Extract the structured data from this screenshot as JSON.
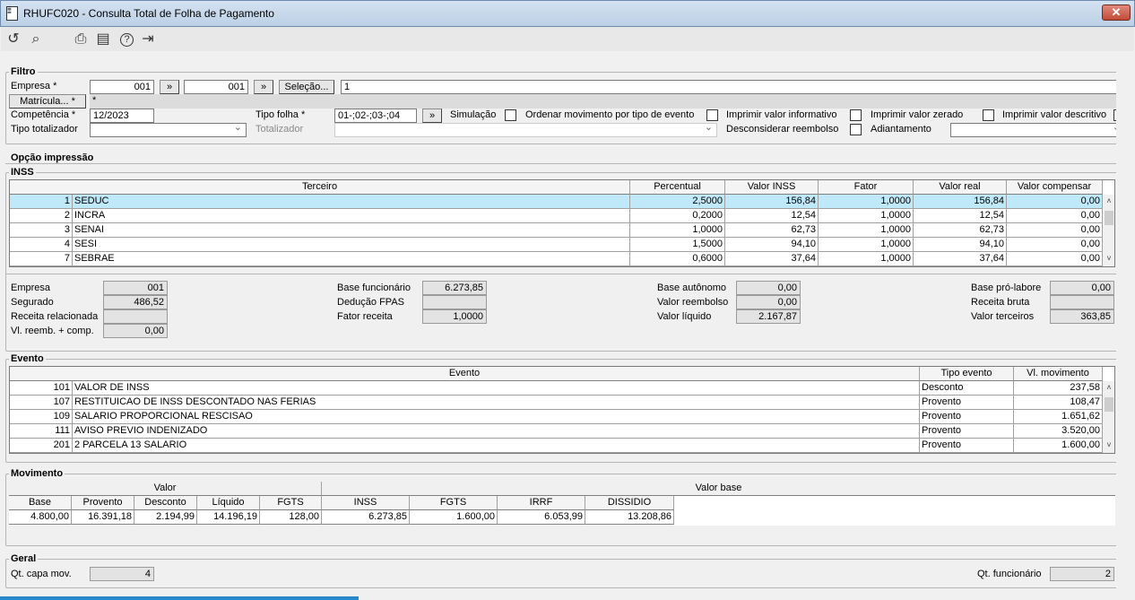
{
  "window": {
    "title": "RHUFC020 - Consulta Total de Folha de Pagamento",
    "close_icon": "close-icon"
  },
  "toolbar": [
    {
      "name": "refresh-icon",
      "glyph": "↺"
    },
    {
      "name": "search-icon",
      "glyph": "⌕"
    },
    {
      "name": "print-icon",
      "glyph": "⎙"
    },
    {
      "name": "calendar-icon",
      "glyph": "▤"
    },
    {
      "name": "help-icon",
      "glyph": "?"
    },
    {
      "name": "exit-icon",
      "glyph": "⇥"
    }
  ],
  "filtro": {
    "legend": "Filtro",
    "empresa_label": "Empresa *",
    "empresa_from": "001",
    "empresa_to": "001",
    "arrow": "»",
    "selecao_label": "Seleção...",
    "selecao_value": "1",
    "matricula_label": "Matrícula... *",
    "matricula_value": "*",
    "competencia_label": "Competência *",
    "competencia_value": "12/2023",
    "tipo_folha_label": "Tipo folha *",
    "tipo_folha_value": "01-;02-;03-;04",
    "simulacao_label": "Simulação",
    "ordenar_label": "Ordenar movimento por tipo de evento",
    "informativo_label": "Imprimir valor informativo",
    "zerado_label": "Imprimir valor zerado",
    "descritivo_label": "Imprimir valor descritivo",
    "tipo_totalizador_label": "Tipo totalizador",
    "totalizador_label": "Totalizador",
    "desconsiderar_label": "Desconsiderar reembolso",
    "adiantamento_label": "Adiantamento"
  },
  "opcao": {
    "legend": "Opção impressão"
  },
  "inss": {
    "legend": "INSS",
    "headers": [
      "Terceiro",
      "Percentual",
      "Valor INSS",
      "Fator",
      "Valor real",
      "Valor compensar"
    ],
    "rows": [
      [
        "1",
        "SEDUC",
        "2,5000",
        "156,84",
        "1,0000",
        "156,84",
        "0,00"
      ],
      [
        "2",
        "INCRA",
        "0,2000",
        "12,54",
        "1,0000",
        "12,54",
        "0,00"
      ],
      [
        "3",
        "SENAI",
        "1,0000",
        "62,73",
        "1,0000",
        "62,73",
        "0,00"
      ],
      [
        "4",
        "SESI",
        "1,5000",
        "94,10",
        "1,0000",
        "94,10",
        "0,00"
      ],
      [
        "7",
        "SEBRAE",
        "0,6000",
        "37,64",
        "1,0000",
        "37,64",
        "0,00"
      ]
    ],
    "selected_row": 0,
    "selected_color": "#bfe8f8",
    "summary": [
      {
        "label": "Empresa",
        "value": "001"
      },
      {
        "label": "Segurado",
        "value": "486,52"
      },
      {
        "label": "Receita relacionada",
        "value": ""
      },
      {
        "label": "Vl. reemb. + comp.",
        "value": "0,00"
      },
      {
        "label": "Base funcionário",
        "value": "6.273,85"
      },
      {
        "label": "Dedução FPAS",
        "value": ""
      },
      {
        "label": "Fator receita",
        "value": "1,0000"
      },
      {
        "label": "Base autônomo",
        "value": "0,00"
      },
      {
        "label": "Valor reembolso",
        "value": "0,00"
      },
      {
        "label": "Valor líquido",
        "value": "2.167,87"
      },
      {
        "label": "Base pró-labore",
        "value": "0,00"
      },
      {
        "label": "Receita bruta",
        "value": ""
      },
      {
        "label": "Valor terceiros",
        "value": "363,85"
      }
    ]
  },
  "evento": {
    "legend": "Evento",
    "headers": [
      "Evento",
      "Tipo evento",
      "Vl. movimento"
    ],
    "rows": [
      [
        "101",
        "VALOR DE INSS",
        "Desconto",
        "237,58"
      ],
      [
        "107",
        "RESTITUICAO DE INSS DESCONTADO NAS FERIAS",
        "Provento",
        "108,47"
      ],
      [
        "109",
        "SALARIO PROPORCIONAL RESCISAO",
        "Provento",
        "1.651,62"
      ],
      [
        "111",
        "AVISO PREVIO INDENIZADO",
        "Provento",
        "3.520,00"
      ],
      [
        "201",
        "2 PARCELA 13 SALARIO",
        "Provento",
        "1.600,00"
      ]
    ]
  },
  "movimento": {
    "legend": "Movimento",
    "group_valor": "Valor",
    "group_base": "Valor base",
    "headers": [
      "Base",
      "Provento",
      "Desconto",
      "Líquido",
      "FGTS",
      "INSS",
      "FGTS",
      "IRRF",
      "DISSIDIO"
    ],
    "values": [
      "4.800,00",
      "16.391,18",
      "2.194,99",
      "14.196,19",
      "128,00",
      "6.273,85",
      "1.600,00",
      "6.053,99",
      "13.208,86"
    ]
  },
  "geral": {
    "legend": "Geral",
    "qt_capa_label": "Qt. capa mov.",
    "qt_capa_value": "4",
    "qt_func_label": "Qt. funcionário",
    "qt_func_value": "2"
  }
}
